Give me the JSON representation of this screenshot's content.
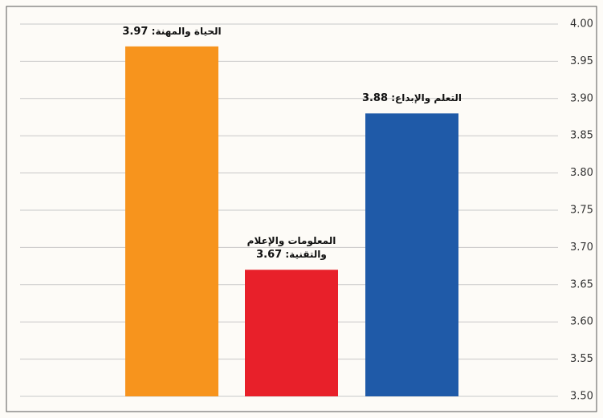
{
  "chart_data": {
    "type": "bar",
    "categories": [
      "الحياة والمهنة:",
      "المعلومات والإعلام والتقنية:",
      "التعلم والإبداع:"
    ],
    "values": [
      3.97,
      3.67,
      3.88
    ],
    "colors": [
      "#f7941d",
      "#e8202a",
      "#1f5aa8"
    ],
    "ylim": [
      3.5,
      4.0
    ],
    "yticks": [
      {
        "value": 3.5,
        "label": "3.50"
      },
      {
        "value": 3.55,
        "label": "3.55"
      },
      {
        "value": 3.6,
        "label": "3.60"
      },
      {
        "value": 3.65,
        "label": "3.65"
      },
      {
        "value": 3.7,
        "label": "3.70"
      },
      {
        "value": 3.75,
        "label": "3.75"
      },
      {
        "value": 3.8,
        "label": "3.80"
      },
      {
        "value": 3.85,
        "label": "3.85"
      },
      {
        "value": 3.9,
        "label": "3.90"
      },
      {
        "value": 3.95,
        "label": "3.95"
      },
      {
        "value": 4.0,
        "label": "4.00"
      }
    ],
    "grid": true,
    "y_axis_side": "right"
  }
}
